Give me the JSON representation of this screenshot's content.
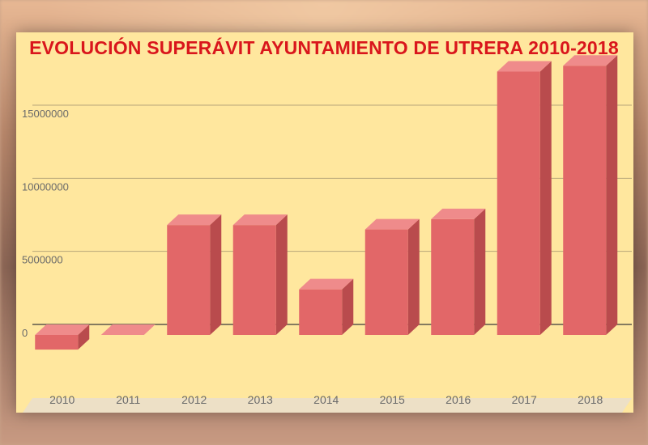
{
  "chart_data": {
    "type": "bar",
    "title": "EVOLUCIÓN SUPERÁVIT AYUNTAMIENTO DE UTRERA 2010-2018",
    "categories": [
      "2010",
      "2011",
      "2012",
      "2013",
      "2014",
      "2015",
      "2016",
      "2017",
      "2018"
    ],
    "values": [
      -1000000,
      0,
      6800000,
      6800000,
      2400000,
      6500000,
      7200000,
      17300000,
      17700000
    ],
    "yticks": [
      "0",
      "5000000",
      "10000000",
      "15000000"
    ],
    "ylim": [
      -2000000,
      18500000
    ],
    "grid": true,
    "legend": "none",
    "colors": {
      "bar_front": "#e26768",
      "bar_top": "#ef8b8b",
      "bar_side": "#b94b4d",
      "title": "#d9161c"
    }
  }
}
